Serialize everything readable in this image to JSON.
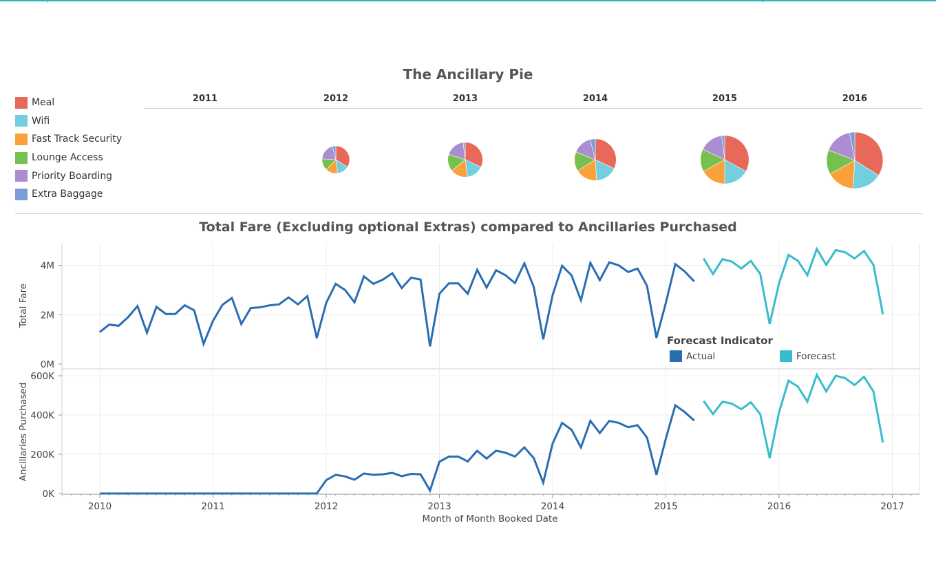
{
  "pie_section": {
    "title": "The Ancillary Pie",
    "legend": [
      {
        "label": "Meal",
        "color": "#e8685a"
      },
      {
        "label": "Wifi",
        "color": "#73cfe0"
      },
      {
        "label": "Fast Track Security",
        "color": "#fba13b"
      },
      {
        "label": "Lounge Access",
        "color": "#76c14e"
      },
      {
        "label": "Priority Boarding",
        "color": "#ad8dd2"
      },
      {
        "label": "Extra Baggage",
        "color": "#789fd4"
      }
    ]
  },
  "line_section": {
    "title": "Total Fare (Excluding optional Extras) compared to Ancillaries Purchased",
    "forecast_legend": {
      "title": "Forecast Indicator",
      "items": [
        {
          "label": "Actual",
          "color": "#2a6db3"
        },
        {
          "label": "Forecast",
          "color": "#37bccd"
        }
      ]
    }
  },
  "chart_data": [
    {
      "type": "pie",
      "title": "The Ancillary Pie",
      "categories": [
        "Meal",
        "Wifi",
        "Fast Track Security",
        "Lounge Access",
        "Priority Boarding",
        "Extra Baggage"
      ],
      "colors": [
        "#e8685a",
        "#73cfe0",
        "#fba13b",
        "#76c14e",
        "#ad8dd2",
        "#789fd4"
      ],
      "years": [
        "2011",
        "2012",
        "2013",
        "2014",
        "2015",
        "2016"
      ],
      "series": [
        {
          "name": "2011",
          "total": 0,
          "values": [
            0,
            0,
            0,
            0,
            0,
            0
          ]
        },
        {
          "name": "2012",
          "total": 1.0,
          "values": [
            34,
            14,
            14,
            14,
            20,
            4
          ]
        },
        {
          "name": "2013",
          "total": 1.6,
          "values": [
            32,
            16,
            16,
            16,
            18,
            2
          ]
        },
        {
          "name": "2014",
          "total": 2.3,
          "values": [
            32,
            17,
            17,
            15,
            15,
            4
          ]
        },
        {
          "name": "2015",
          "total": 3.1,
          "values": [
            33,
            17,
            17,
            15,
            16,
            2
          ]
        },
        {
          "name": "2016",
          "total": 4.2,
          "values": [
            34,
            17,
            16,
            14,
            16,
            3
          ]
        }
      ]
    },
    {
      "type": "line",
      "title": "Total Fare (Excluding optional Extras) compared to Ancillaries Purchased",
      "xlabel": "Month of Month Booked Date",
      "x_ticks": [
        "2010",
        "2011",
        "2012",
        "2013",
        "2014",
        "2015",
        "2016",
        "2017"
      ],
      "x_range": [
        "2009-08",
        "2017-03"
      ],
      "panels": [
        {
          "ylabel": "Total Fare",
          "ylim": [
            0,
            4800000
          ],
          "y_ticks": [
            {
              "value": 0,
              "label": "0M"
            },
            {
              "value": 2000000,
              "label": "2M"
            },
            {
              "value": 4000000,
              "label": "4M"
            }
          ],
          "series": [
            {
              "name": "Actual",
              "color": "#2a6db3",
              "start": "2010-01",
              "values": [
                1300000,
                1600000,
                1550000,
                1900000,
                2350000,
                1270000,
                2320000,
                2030000,
                2030000,
                2380000,
                2180000,
                820000,
                1750000,
                2400000,
                2680000,
                1620000,
                2270000,
                2300000,
                2380000,
                2420000,
                2700000,
                2420000,
                2750000,
                1050000,
                2480000,
                3250000,
                3000000,
                2500000,
                3550000,
                3250000,
                3420000,
                3680000,
                3080000,
                3500000,
                3420000,
                720000,
                2850000,
                3270000,
                3270000,
                2850000,
                3820000,
                3100000,
                3800000,
                3600000,
                3280000,
                4080000,
                3120000,
                1000000,
                2800000,
                3980000,
                3600000,
                2580000,
                4100000,
                3400000,
                4120000,
                4000000,
                3730000,
                3870000,
                3170000,
                1060000,
                2480000,
                4050000,
                3750000,
                3350000
              ]
            },
            {
              "name": "Forecast",
              "color": "#37bccd",
              "start": "2015-05",
              "values": [
                4280000,
                3650000,
                4250000,
                4150000,
                3870000,
                4180000,
                3650000,
                1620000,
                3280000,
                4420000,
                4180000,
                3600000,
                4660000,
                4020000,
                4620000,
                4530000,
                4280000,
                4580000,
                4020000,
                2020000
              ]
            }
          ]
        },
        {
          "ylabel": "Ancillaries Purchased",
          "ylim": [
            0,
            630000
          ],
          "y_ticks": [
            {
              "value": 0,
              "label": "0K"
            },
            {
              "value": 200000,
              "label": "200K"
            },
            {
              "value": 400000,
              "label": "400K"
            },
            {
              "value": 600000,
              "label": "600K"
            }
          ],
          "series": [
            {
              "name": "Actual",
              "color": "#2a6db3",
              "start": "2010-01",
              "values": [
                0,
                0,
                0,
                0,
                0,
                0,
                0,
                0,
                0,
                0,
                0,
                0,
                0,
                0,
                0,
                0,
                0,
                0,
                0,
                0,
                0,
                0,
                0,
                0,
                68000,
                95000,
                87000,
                70000,
                102000,
                95000,
                98000,
                105000,
                88000,
                100000,
                98000,
                15000,
                162000,
                188000,
                188000,
                163000,
                218000,
                178000,
                218000,
                208000,
                188000,
                235000,
                180000,
                55000,
                255000,
                360000,
                325000,
                235000,
                370000,
                308000,
                370000,
                360000,
                338000,
                348000,
                285000,
                95000,
                280000,
                450000,
                415000,
                372000
              ]
            },
            {
              "name": "Forecast",
              "color": "#37bccd",
              "start": "2015-05",
              "values": [
                472000,
                405000,
                468000,
                458000,
                430000,
                465000,
                405000,
                180000,
                415000,
                575000,
                545000,
                468000,
                605000,
                520000,
                600000,
                588000,
                553000,
                595000,
                520000,
                260000
              ]
            }
          ]
        }
      ]
    }
  ]
}
